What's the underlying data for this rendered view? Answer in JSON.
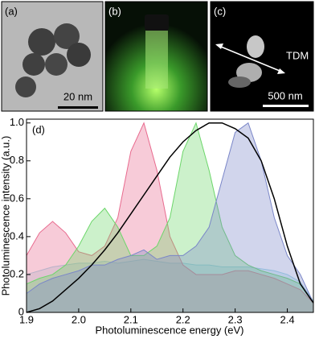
{
  "panels": [
    {
      "label": "(a)",
      "scale_bar": "20 nm"
    },
    {
      "label": "(b)"
    },
    {
      "label": "(c)",
      "annotation": "TDM",
      "scale_bar": "500 nm"
    }
  ],
  "chart_data": {
    "type": "area",
    "panel_label": "(d)",
    "x_label": "Photoluminescence energy (eV)",
    "y_label": "Photoluminescence intensity (a.u.)",
    "x": [
      1.9,
      1.925,
      1.95,
      1.975,
      2.0,
      2.025,
      2.05,
      2.075,
      2.1,
      2.125,
      2.15,
      2.175,
      2.2,
      2.225,
      2.25,
      2.275,
      2.3,
      2.325,
      2.35,
      2.375,
      2.4,
      2.425,
      2.45
    ],
    "series": [
      {
        "color": "#9fd8e6",
        "fill": true,
        "values": [
          0.2,
          0.22,
          0.24,
          0.25,
          0.26,
          0.26,
          0.27,
          0.26,
          0.27,
          0.28,
          0.27,
          0.26,
          0.26,
          0.25,
          0.25,
          0.24,
          0.24,
          0.24,
          0.23,
          0.22,
          0.2,
          0.16,
          0.06
        ]
      },
      {
        "color": "#e86a8e",
        "fill": true,
        "values": [
          0.3,
          0.42,
          0.48,
          0.42,
          0.32,
          0.3,
          0.35,
          0.5,
          0.85,
          1.0,
          0.75,
          0.4,
          0.25,
          0.2,
          0.2,
          0.2,
          0.22,
          0.22,
          0.2,
          0.18,
          0.15,
          0.12,
          0.05
        ]
      },
      {
        "color": "#6cd66a",
        "fill": true,
        "values": [
          0.15,
          0.18,
          0.2,
          0.25,
          0.35,
          0.48,
          0.55,
          0.45,
          0.3,
          0.3,
          0.35,
          0.5,
          0.85,
          1.0,
          0.75,
          0.45,
          0.3,
          0.25,
          0.22,
          0.2,
          0.18,
          0.15,
          0.05
        ]
      },
      {
        "color": "#7a86c8",
        "fill": true,
        "values": [
          0.1,
          0.15,
          0.18,
          0.2,
          0.22,
          0.25,
          0.25,
          0.28,
          0.3,
          0.33,
          0.28,
          0.3,
          0.3,
          0.35,
          0.45,
          0.7,
          0.95,
          1.0,
          0.8,
          0.5,
          0.3,
          0.2,
          0.05
        ]
      },
      {
        "color": "#000000",
        "fill": false,
        "values": [
          0.0,
          0.02,
          0.06,
          0.12,
          0.18,
          0.25,
          0.33,
          0.42,
          0.52,
          0.62,
          0.72,
          0.82,
          0.9,
          0.96,
          1.0,
          1.0,
          0.97,
          0.92,
          0.8,
          0.6,
          0.35,
          0.15,
          0.05
        ]
      }
    ],
    "xlim": [
      1.9,
      2.45
    ],
    "ylim": [
      0,
      1.02
    ],
    "xticks": [
      1.9,
      {
        "value": 2.0,
        "label": "2.0"
      },
      2.1,
      2.2,
      2.3,
      2.4
    ],
    "yticks": [
      0,
      0.2,
      0.4,
      0.6,
      0.8,
      {
        "value": 1.0,
        "label": "1.0"
      }
    ]
  }
}
